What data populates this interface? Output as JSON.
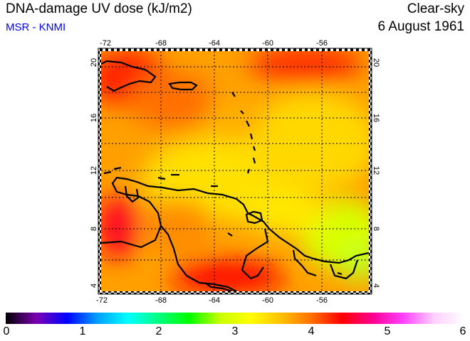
{
  "header": {
    "title": "DNA-damage UV dose (kJ/m2)",
    "subtitle": "MSR - KNMI",
    "condition": "Clear-sky",
    "date": "6 August 1961"
  },
  "map": {
    "lon_ticks": [
      "-72",
      "-68",
      "-64",
      "-60",
      "-56"
    ],
    "lat_ticks": [
      "4",
      "8",
      "12",
      "16",
      "20"
    ],
    "lon_range": [
      -72,
      -52
    ],
    "lat_range": [
      3.5,
      20.5
    ],
    "field_range": "approx. 3.3 to 4.5 kJ/m2"
  },
  "colorbar": {
    "labels": [
      "0",
      "1",
      "2",
      "3",
      "4",
      "5",
      "6"
    ],
    "colors": [
      "#000000",
      "#7a00b0",
      "#0000ff",
      "#00a0ff",
      "#00ffff",
      "#00ff80",
      "#00ff00",
      "#c8ff00",
      "#ffff00",
      "#ffc000",
      "#ff7000",
      "#ff0000",
      "#ff0090",
      "#ff40ff",
      "#ffd0ff",
      "#ffffff"
    ]
  }
}
